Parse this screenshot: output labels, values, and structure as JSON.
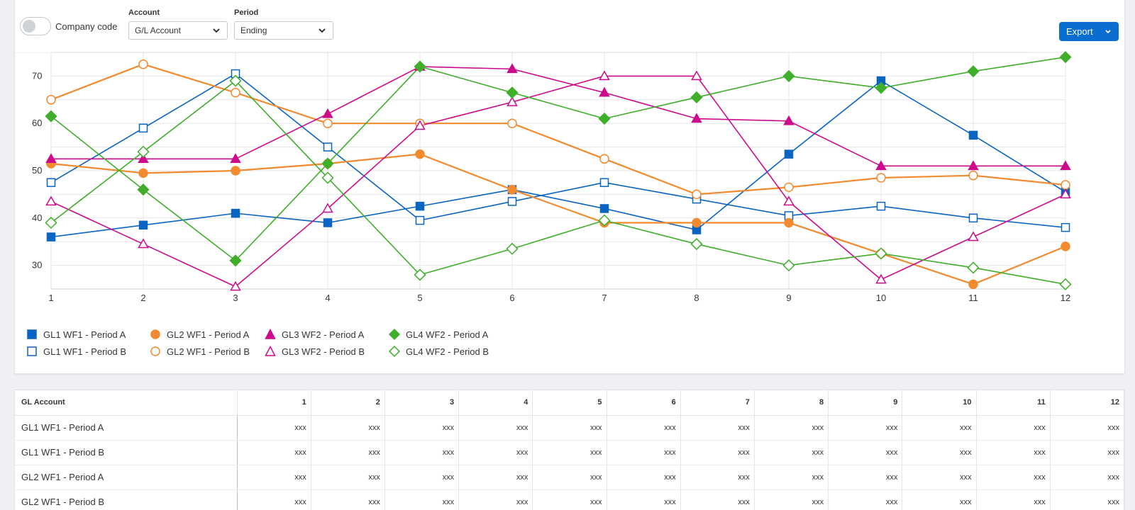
{
  "toolbar": {
    "company_code_label": "Company code",
    "account_label": "Account",
    "account_value": "G/L Account",
    "period_label": "Period",
    "period_value": "Ending",
    "export_label": "Export"
  },
  "colors": {
    "blue": "#0a64c2",
    "orange": "#f28a2f",
    "magenta": "#cc0a8c",
    "green": "#3fae2a",
    "accent": "#0a6ed1"
  },
  "chart_data": {
    "type": "line",
    "x": [
      1,
      2,
      3,
      4,
      5,
      6,
      7,
      8,
      9,
      10,
      11,
      12
    ],
    "ylim": [
      25,
      75
    ],
    "yticks": [
      30,
      40,
      50,
      60,
      70
    ],
    "series": [
      {
        "name": "GL1 WF1 - Period A",
        "color": "#0a64c2",
        "marker": "square",
        "filled": true,
        "values": [
          36,
          38.5,
          41,
          39,
          42.5,
          46,
          42,
          37.5,
          53.5,
          69,
          57.5,
          45.5
        ]
      },
      {
        "name": "GL1 WF1 - Period B",
        "color": "#0a64c2",
        "marker": "square",
        "filled": false,
        "values": [
          47.5,
          59,
          70.5,
          55,
          39.5,
          43.5,
          47.5,
          44,
          40.5,
          42.5,
          40,
          38
        ]
      },
      {
        "name": "GL2 WF1 - Period A",
        "color": "#f28a2f",
        "marker": "circle",
        "filled": true,
        "values": [
          51.5,
          49.5,
          50,
          51.5,
          53.5,
          46,
          39,
          39,
          39,
          32.5,
          26,
          34
        ]
      },
      {
        "name": "GL2 WF1 - Period B",
        "color": "#f28a2f",
        "marker": "circle",
        "filled": false,
        "values": [
          65,
          72.5,
          66.5,
          60,
          60,
          60,
          52.5,
          45,
          46.5,
          48.5,
          49,
          47
        ]
      },
      {
        "name": "GL3 WF2 - Period A",
        "color": "#cc0a8c",
        "marker": "triangle",
        "filled": true,
        "values": [
          52.5,
          52.5,
          52.5,
          62,
          72,
          71.5,
          66.5,
          61,
          60.5,
          51,
          51,
          51
        ]
      },
      {
        "name": "GL3 WF2 - Period B",
        "color": "#cc0a8c",
        "marker": "triangle",
        "filled": false,
        "values": [
          43.5,
          34.5,
          25.5,
          42,
          59.5,
          64.5,
          70,
          70,
          43.5,
          27,
          36,
          45
        ]
      },
      {
        "name": "GL4 WF2 - Period A",
        "color": "#3fae2a",
        "marker": "diamond",
        "filled": true,
        "values": [
          61.5,
          46,
          31,
          51.5,
          72,
          66.5,
          61,
          65.5,
          70,
          67.5,
          71,
          74
        ]
      },
      {
        "name": "GL4 WF2 - Period B",
        "color": "#3fae2a",
        "marker": "diamond",
        "filled": false,
        "values": [
          39,
          54,
          69,
          48.5,
          28,
          33.5,
          39.5,
          34.5,
          30,
          32.5,
          29.5,
          26
        ]
      }
    ]
  },
  "table": {
    "headers": [
      "GL Account",
      "1",
      "2",
      "3",
      "4",
      "5",
      "6",
      "7",
      "8",
      "9",
      "10",
      "11",
      "12"
    ],
    "rows": [
      {
        "label": "GL1 WF1 - Period A",
        "cells": [
          "xxx",
          "xxx",
          "xxx",
          "xxx",
          "xxx",
          "xxx",
          "xxx",
          "xxx",
          "xxx",
          "xxx",
          "xxx",
          "xxx"
        ]
      },
      {
        "label": "GL1 WF1 - Period B",
        "cells": [
          "xxx",
          "xxx",
          "xxx",
          "xxx",
          "xxx",
          "xxx",
          "xxx",
          "xxx",
          "xxx",
          "xxx",
          "xxx",
          "xxx"
        ]
      },
      {
        "label": "GL2 WF1 - Period A",
        "cells": [
          "xxx",
          "xxx",
          "xxx",
          "xxx",
          "xxx",
          "xxx",
          "xxx",
          "xxx",
          "xxx",
          "xxx",
          "xxx",
          "xxx"
        ]
      },
      {
        "label": "GL2 WF1 - Period B",
        "cells": [
          "xxx",
          "xxx",
          "xxx",
          "xxx",
          "xxx",
          "xxx",
          "xxx",
          "xxx",
          "xxx",
          "xxx",
          "xxx",
          "xxx"
        ]
      }
    ]
  }
}
